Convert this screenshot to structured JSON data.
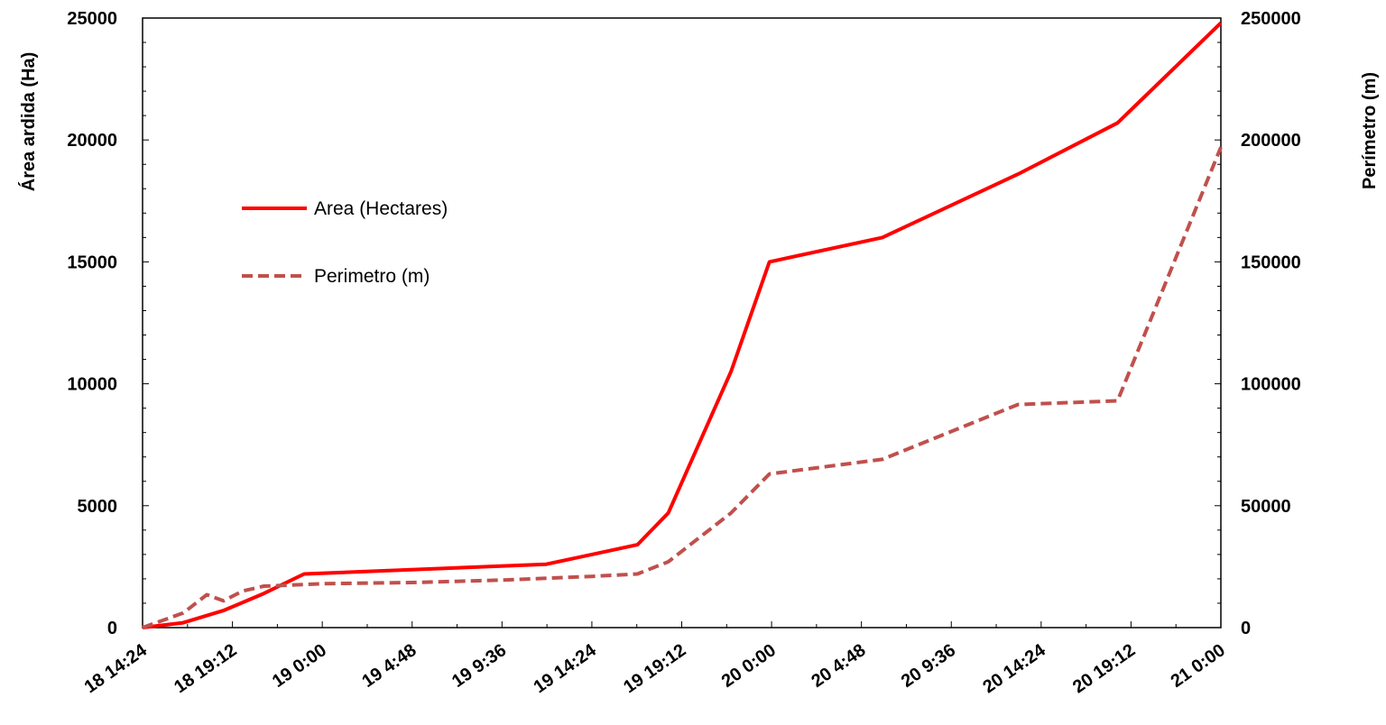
{
  "chart_data": {
    "type": "line",
    "xlabel": "",
    "ylabel": "Área ardida (Ha)",
    "y2label": "Perímetro (m)",
    "ylim": [
      0,
      25000
    ],
    "y2lim": [
      0,
      250000
    ],
    "yticks": [
      "0",
      "5000",
      "10000",
      "15000",
      "20000",
      "25000"
    ],
    "y2ticks": [
      "0",
      "50000",
      "100000",
      "150000",
      "200000",
      "250000"
    ],
    "xticks": [
      "18 14:24",
      "18 19:12",
      "19 0:00",
      "19 4:48",
      "19 9:36",
      "19 14:24",
      "19 19:12",
      "20 0:00",
      "20 4:48",
      "20 9:36",
      "20 14:24",
      "20 19:12",
      "21 0:00"
    ],
    "grid": false,
    "legend": "upper-left",
    "series": [
      {
        "name": "Area (Hectares)",
        "axis": "left",
        "color": "#ff0000",
        "dash": "solid",
        "x": [
          "18 14:24",
          "18 16:34",
          "18 18:43",
          "18 20:53",
          "18 23:02",
          "19 11:58",
          "19 14:24",
          "19 16:50",
          "19 18:29",
          "19 21:50",
          "19 23:53",
          "20 5:55",
          "20 13:10",
          "20 18:29",
          "21 0:00"
        ],
        "values": [
          0,
          200,
          700,
          1400,
          2200,
          2600,
          3000,
          3400,
          4700,
          10500,
          15000,
          16000,
          18600,
          20700,
          24800
        ]
      },
      {
        "name": "Perimetro (m)",
        "axis": "right",
        "color": "#c0504d",
        "dash": "dashed",
        "x": [
          "18 14:24",
          "18 16:34",
          "18 17:50",
          "18 18:43",
          "18 19:45",
          "18 20:53",
          "19 0:00",
          "19 4:48",
          "19 9:36",
          "19 14:24",
          "19 16:50",
          "19 18:29",
          "19 21:50",
          "19 23:53",
          "20 5:55",
          "20 13:10",
          "20 18:29",
          "21 0:00"
        ],
        "values": [
          0,
          6000,
          13500,
          11000,
          15000,
          17000,
          18000,
          18500,
          19500,
          21000,
          22000,
          27000,
          47000,
          63000,
          69000,
          91500,
          93000,
          197000
        ]
      }
    ]
  }
}
